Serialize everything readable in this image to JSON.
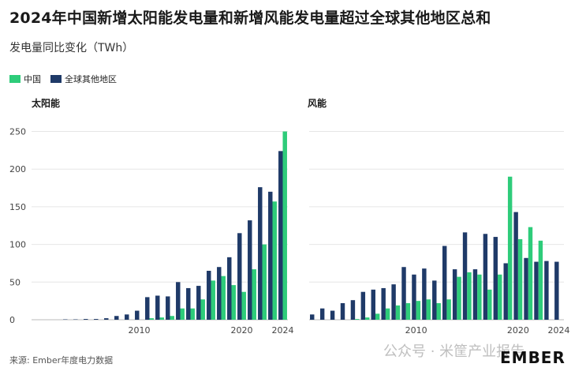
{
  "header": {
    "title": "2024年中国新增太阳能发电量和新增风能发电量超过全球其他地区总和",
    "subtitle": "发电量同比变化（TWh）"
  },
  "legend": [
    {
      "label": "中国",
      "color": "#2ecc7a"
    },
    {
      "label": "全球其他地区",
      "color": "#1f3a68"
    }
  ],
  "footer": {
    "source": "来源: Ember年度电力数据",
    "brand": "EMBER",
    "watermark": "公众号 · 米筐产业报告"
  },
  "chart_data": [
    {
      "type": "bar",
      "title": "太阳能",
      "ylabel": "",
      "ylim": [
        0,
        260
      ],
      "yticks": [
        0,
        50,
        100,
        150,
        200,
        250
      ],
      "xtick_labels": [
        "2010",
        "2020",
        "2024"
      ],
      "categories": [
        2000,
        2001,
        2002,
        2003,
        2004,
        2005,
        2006,
        2007,
        2008,
        2009,
        2010,
        2011,
        2012,
        2013,
        2014,
        2015,
        2016,
        2017,
        2018,
        2019,
        2020,
        2021,
        2022,
        2023,
        2024
      ],
      "series": [
        {
          "name": "全球其他地区",
          "color": "#1f3a68",
          "values": [
            0,
            0,
            0,
            0.5,
            0.5,
            1,
            1,
            2,
            5,
            7,
            12,
            30,
            32,
            31,
            50,
            42,
            45,
            65,
            70,
            83,
            115,
            132,
            176,
            170,
            224
          ]
        },
        {
          "name": "中国",
          "color": "#2ecc7a",
          "values": [
            0,
            0,
            0,
            0,
            0,
            0,
            0,
            0,
            0,
            0,
            0,
            2,
            3,
            5,
            15,
            15,
            27,
            52,
            58,
            46,
            37,
            67,
            100,
            157,
            250
          ]
        }
      ]
    },
    {
      "type": "bar",
      "title": "风能",
      "ylabel": "",
      "ylim": [
        0,
        260
      ],
      "yticks": [
        0,
        50,
        100,
        150,
        200,
        250
      ],
      "xtick_labels": [
        "2010",
        "2020",
        "2024"
      ],
      "categories": [
        2000,
        2001,
        2002,
        2003,
        2004,
        2005,
        2006,
        2007,
        2008,
        2009,
        2010,
        2011,
        2012,
        2013,
        2014,
        2015,
        2016,
        2017,
        2018,
        2019,
        2020,
        2021,
        2022,
        2023,
        2024
      ],
      "series": [
        {
          "name": "全球其他地区",
          "color": "#1f3a68",
          "values": [
            7,
            15,
            12,
            22,
            26,
            37,
            40,
            42,
            47,
            70,
            60,
            68,
            52,
            98,
            67,
            116,
            67,
            114,
            110,
            75,
            143,
            82,
            77,
            78,
            77
          ]
        },
        {
          "name": "中国",
          "color": "#2ecc7a",
          "values": [
            0,
            0,
            0,
            0,
            1,
            3,
            8,
            15,
            19,
            22,
            25,
            27,
            22,
            27,
            57,
            63,
            60,
            40,
            60,
            190,
            107,
            123,
            105,
            0,
            0
          ]
        }
      ]
    }
  ]
}
